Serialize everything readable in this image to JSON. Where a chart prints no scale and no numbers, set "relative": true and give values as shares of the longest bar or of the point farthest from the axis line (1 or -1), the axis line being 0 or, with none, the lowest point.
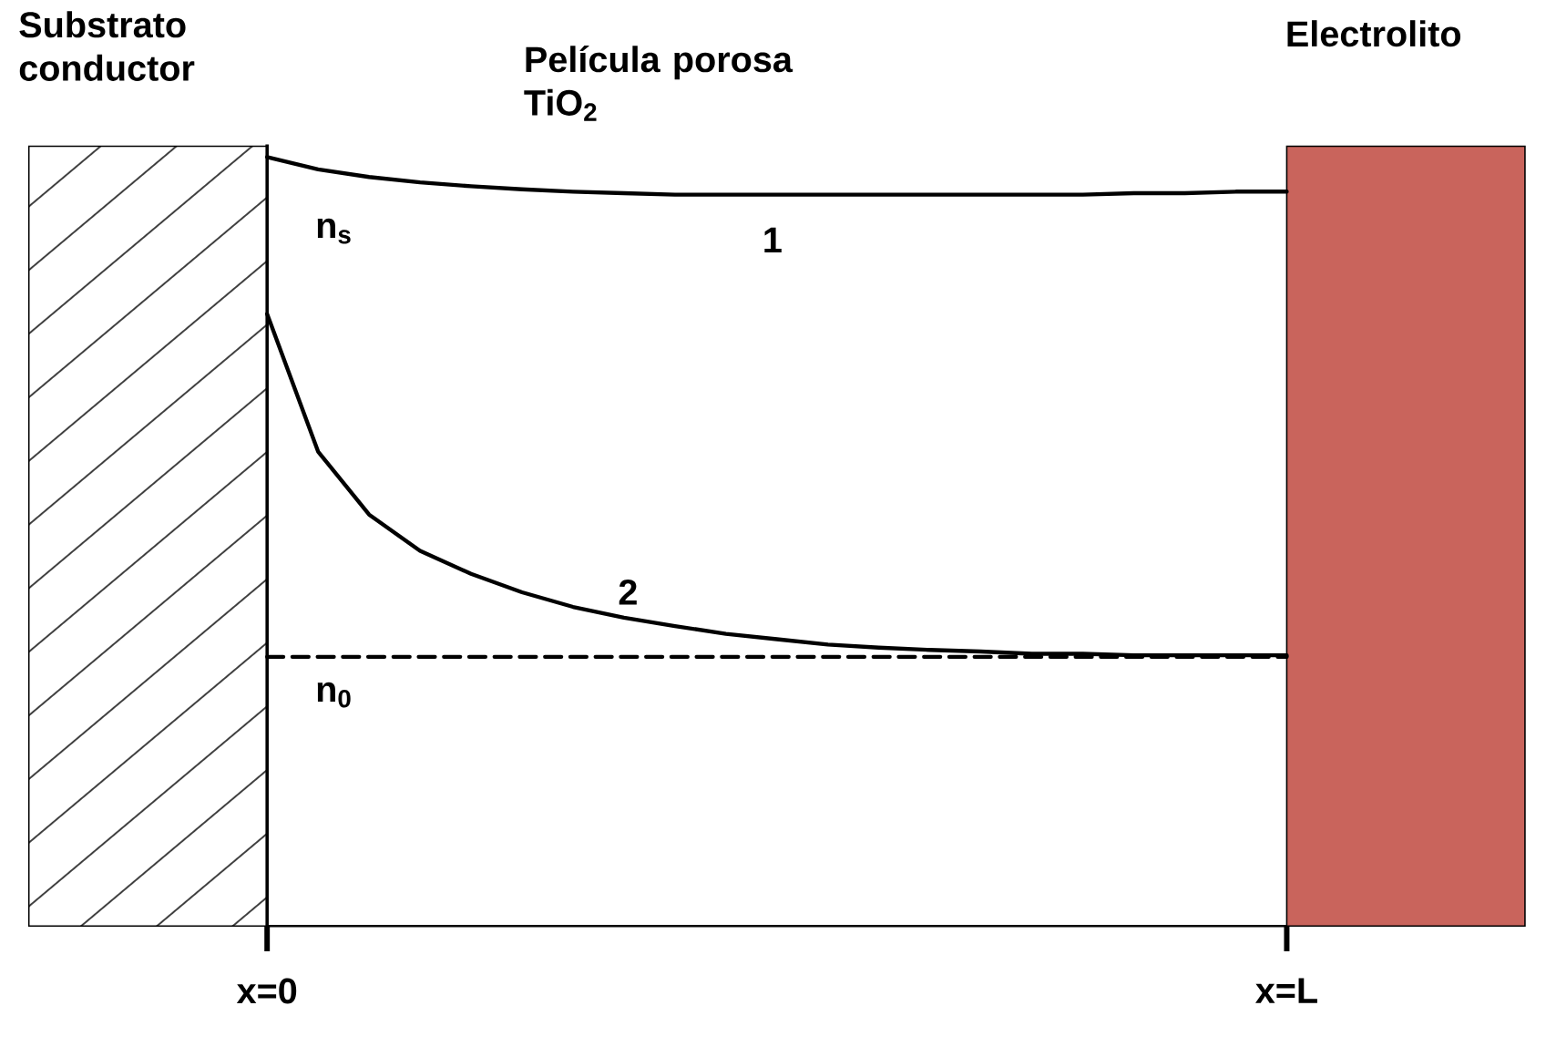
{
  "chart_data": {
    "type": "line",
    "relative": true,
    "title": "Película porosa TiO$_{2}$",
    "categories": [
      "x=0",
      null,
      null,
      null,
      null,
      null,
      null,
      null,
      null,
      null,
      null,
      null,
      null,
      null,
      null,
      null,
      null,
      null,
      null,
      null,
      "x=L"
    ],
    "series": [
      {
        "color": "#000000",
        "values": [
          1,
          0.984,
          0.974,
          0.967,
          0.962,
          0.958,
          0.955,
          0.953,
          0.951,
          0.951,
          0.951,
          0.951,
          0.951,
          0.951,
          0.951,
          0.951,
          0.951,
          0.953,
          0.953,
          0.955,
          0.955
        ]
      },
      {
        "color": "#000000",
        "values": [
          0.796,
          0.617,
          0.535,
          0.488,
          0.458,
          0.434,
          0.415,
          0.401,
          0.39,
          0.38,
          0.373,
          0.366,
          0.362,
          0.359,
          0.357,
          0.354,
          0.354,
          0.352,
          0.352,
          0.352,
          0.352
        ]
      },
      {
        "color": "#000000",
        "line_style": "dashed",
        "values": [
          0.35,
          0.35,
          0.35,
          0.35,
          0.35,
          0.35,
          0.35,
          0.35,
          0.35,
          0.35,
          0.35,
          0.35,
          0.35,
          0.35,
          0.35,
          0.35,
          0.35,
          0.35,
          0.35,
          0.35,
          0.35
        ]
      }
    ],
    "annotations": [
      "Substrato conductor",
      "n$_{s}$",
      "1",
      "2",
      "n$_{0}$",
      "Electrolito"
    ]
  }
}
